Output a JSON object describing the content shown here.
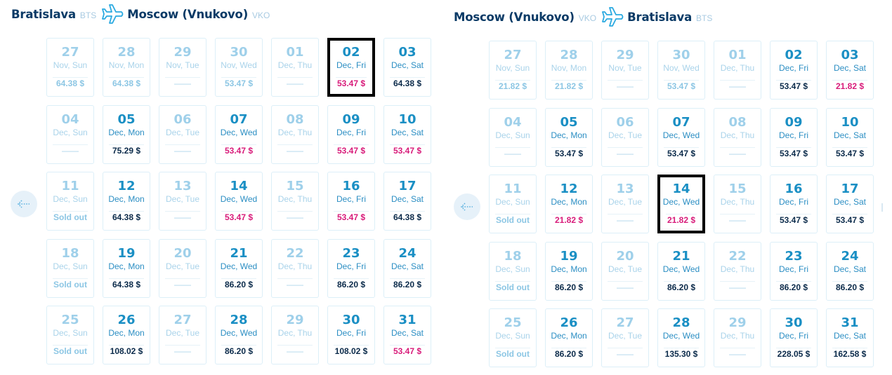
{
  "outbound": {
    "from_city": "Bratislava",
    "from_code": "BTS",
    "to_city": "Moscow (Vnukovo)",
    "to_code": "VKO",
    "selected_index": 5,
    "days": [
      {
        "day": "27",
        "sub": "Nov, Sun",
        "price": "64.38 $",
        "state": "inactive",
        "ptype": "past"
      },
      {
        "day": "28",
        "sub": "Nov, Mon",
        "price": "64.38 $",
        "state": "inactive",
        "ptype": "past"
      },
      {
        "day": "29",
        "sub": "Nov, Tue",
        "price": "——",
        "state": "inactive",
        "ptype": "none"
      },
      {
        "day": "30",
        "sub": "Nov, Wed",
        "price": "53.47 $",
        "state": "inactive",
        "ptype": "past"
      },
      {
        "day": "01",
        "sub": "Dec, Thu",
        "price": "——",
        "state": "inactive",
        "ptype": "none"
      },
      {
        "day": "02",
        "sub": "Dec, Fri",
        "price": "53.47 $",
        "state": "active",
        "ptype": "low"
      },
      {
        "day": "03",
        "sub": "Dec, Sat",
        "price": "64.38 $",
        "state": "active",
        "ptype": "normal"
      },
      {
        "day": "04",
        "sub": "Dec, Sun",
        "price": "——",
        "state": "inactive",
        "ptype": "none"
      },
      {
        "day": "05",
        "sub": "Dec, Mon",
        "price": "75.29 $",
        "state": "active",
        "ptype": "normal"
      },
      {
        "day": "06",
        "sub": "Dec, Tue",
        "price": "——",
        "state": "inactive",
        "ptype": "none"
      },
      {
        "day": "07",
        "sub": "Dec, Wed",
        "price": "53.47 $",
        "state": "active",
        "ptype": "low"
      },
      {
        "day": "08",
        "sub": "Dec, Thu",
        "price": "——",
        "state": "inactive",
        "ptype": "none"
      },
      {
        "day": "09",
        "sub": "Dec, Fri",
        "price": "53.47 $",
        "state": "active",
        "ptype": "low"
      },
      {
        "day": "10",
        "sub": "Dec, Sat",
        "price": "53.47 $",
        "state": "active",
        "ptype": "low"
      },
      {
        "day": "11",
        "sub": "Dec, Sun",
        "price": "Sold out",
        "state": "inactive",
        "ptype": "soldout"
      },
      {
        "day": "12",
        "sub": "Dec, Mon",
        "price": "64.38 $",
        "state": "active",
        "ptype": "normal"
      },
      {
        "day": "13",
        "sub": "Dec, Tue",
        "price": "——",
        "state": "inactive",
        "ptype": "none"
      },
      {
        "day": "14",
        "sub": "Dec, Wed",
        "price": "53.47 $",
        "state": "active",
        "ptype": "low"
      },
      {
        "day": "15",
        "sub": "Dec, Thu",
        "price": "——",
        "state": "inactive",
        "ptype": "none"
      },
      {
        "day": "16",
        "sub": "Dec, Fri",
        "price": "53.47 $",
        "state": "active",
        "ptype": "low"
      },
      {
        "day": "17",
        "sub": "Dec, Sat",
        "price": "64.38 $",
        "state": "active",
        "ptype": "normal"
      },
      {
        "day": "18",
        "sub": "Dec, Sun",
        "price": "Sold out",
        "state": "inactive",
        "ptype": "soldout"
      },
      {
        "day": "19",
        "sub": "Dec, Mon",
        "price": "64.38 $",
        "state": "active",
        "ptype": "normal"
      },
      {
        "day": "20",
        "sub": "Dec, Tue",
        "price": "——",
        "state": "inactive",
        "ptype": "none"
      },
      {
        "day": "21",
        "sub": "Dec, Wed",
        "price": "86.20 $",
        "state": "active",
        "ptype": "normal"
      },
      {
        "day": "22",
        "sub": "Dec, Thu",
        "price": "——",
        "state": "inactive",
        "ptype": "none"
      },
      {
        "day": "23",
        "sub": "Dec, Fri",
        "price": "86.20 $",
        "state": "active",
        "ptype": "normal"
      },
      {
        "day": "24",
        "sub": "Dec, Sat",
        "price": "86.20 $",
        "state": "active",
        "ptype": "normal"
      },
      {
        "day": "25",
        "sub": "Dec, Sun",
        "price": "Sold out",
        "state": "inactive",
        "ptype": "soldout"
      },
      {
        "day": "26",
        "sub": "Dec, Mon",
        "price": "108.02 $",
        "state": "active",
        "ptype": "normal"
      },
      {
        "day": "27",
        "sub": "Dec, Tue",
        "price": "——",
        "state": "inactive",
        "ptype": "none"
      },
      {
        "day": "28",
        "sub": "Dec, Wed",
        "price": "86.20 $",
        "state": "active",
        "ptype": "normal"
      },
      {
        "day": "29",
        "sub": "Dec, Thu",
        "price": "——",
        "state": "inactive",
        "ptype": "none"
      },
      {
        "day": "30",
        "sub": "Dec, Fri",
        "price": "108.02 $",
        "state": "active",
        "ptype": "normal"
      },
      {
        "day": "31",
        "sub": "Dec, Sat",
        "price": "53.47 $",
        "state": "active",
        "ptype": "low"
      }
    ]
  },
  "return": {
    "from_city": "Moscow (Vnukovo)",
    "from_code": "VKO",
    "to_city": "Bratislava",
    "to_code": "BTS",
    "selected_index": 17,
    "days": [
      {
        "day": "27",
        "sub": "Nov, Sun",
        "price": "21.82 $",
        "state": "inactive",
        "ptype": "past"
      },
      {
        "day": "28",
        "sub": "Nov, Mon",
        "price": "21.82 $",
        "state": "inactive",
        "ptype": "past"
      },
      {
        "day": "29",
        "sub": "Nov, Tue",
        "price": "——",
        "state": "inactive",
        "ptype": "none"
      },
      {
        "day": "30",
        "sub": "Nov, Wed",
        "price": "53.47 $",
        "state": "inactive",
        "ptype": "past"
      },
      {
        "day": "01",
        "sub": "Dec, Thu",
        "price": "——",
        "state": "inactive",
        "ptype": "none"
      },
      {
        "day": "02",
        "sub": "Dec, Fri",
        "price": "53.47 $",
        "state": "active",
        "ptype": "normal"
      },
      {
        "day": "03",
        "sub": "Dec, Sat",
        "price": "21.82 $",
        "state": "active",
        "ptype": "low"
      },
      {
        "day": "04",
        "sub": "Dec, Sun",
        "price": "——",
        "state": "inactive",
        "ptype": "none"
      },
      {
        "day": "05",
        "sub": "Dec, Mon",
        "price": "53.47 $",
        "state": "active",
        "ptype": "normal"
      },
      {
        "day": "06",
        "sub": "Dec, Tue",
        "price": "——",
        "state": "inactive",
        "ptype": "none"
      },
      {
        "day": "07",
        "sub": "Dec, Wed",
        "price": "53.47 $",
        "state": "active",
        "ptype": "normal"
      },
      {
        "day": "08",
        "sub": "Dec, Thu",
        "price": "——",
        "state": "inactive",
        "ptype": "none"
      },
      {
        "day": "09",
        "sub": "Dec, Fri",
        "price": "53.47 $",
        "state": "active",
        "ptype": "normal"
      },
      {
        "day": "10",
        "sub": "Dec, Sat",
        "price": "53.47 $",
        "state": "active",
        "ptype": "normal"
      },
      {
        "day": "11",
        "sub": "Dec, Sun",
        "price": "Sold out",
        "state": "inactive",
        "ptype": "soldout"
      },
      {
        "day": "12",
        "sub": "Dec, Mon",
        "price": "21.82 $",
        "state": "active",
        "ptype": "low"
      },
      {
        "day": "13",
        "sub": "Dec, Tue",
        "price": "——",
        "state": "inactive",
        "ptype": "none"
      },
      {
        "day": "14",
        "sub": "Dec, Wed",
        "price": "21.82 $",
        "state": "active",
        "ptype": "low"
      },
      {
        "day": "15",
        "sub": "Dec, Thu",
        "price": "——",
        "state": "inactive",
        "ptype": "none"
      },
      {
        "day": "16",
        "sub": "Dec, Fri",
        "price": "53.47 $",
        "state": "active",
        "ptype": "normal"
      },
      {
        "day": "17",
        "sub": "Dec, Sat",
        "price": "53.47 $",
        "state": "active",
        "ptype": "normal"
      },
      {
        "day": "18",
        "sub": "Dec, Sun",
        "price": "Sold out",
        "state": "inactive",
        "ptype": "soldout"
      },
      {
        "day": "19",
        "sub": "Dec, Mon",
        "price": "86.20 $",
        "state": "active",
        "ptype": "normal"
      },
      {
        "day": "20",
        "sub": "Dec, Tue",
        "price": "——",
        "state": "inactive",
        "ptype": "none"
      },
      {
        "day": "21",
        "sub": "Dec, Wed",
        "price": "86.20 $",
        "state": "active",
        "ptype": "normal"
      },
      {
        "day": "22",
        "sub": "Dec, Thu",
        "price": "——",
        "state": "inactive",
        "ptype": "none"
      },
      {
        "day": "23",
        "sub": "Dec, Fri",
        "price": "86.20 $",
        "state": "active",
        "ptype": "normal"
      },
      {
        "day": "24",
        "sub": "Dec, Sat",
        "price": "86.20 $",
        "state": "active",
        "ptype": "normal"
      },
      {
        "day": "25",
        "sub": "Dec, Sun",
        "price": "Sold out",
        "state": "inactive",
        "ptype": "soldout"
      },
      {
        "day": "26",
        "sub": "Dec, Mon",
        "price": "86.20 $",
        "state": "active",
        "ptype": "normal"
      },
      {
        "day": "27",
        "sub": "Dec, Tue",
        "price": "——",
        "state": "inactive",
        "ptype": "none"
      },
      {
        "day": "28",
        "sub": "Dec, Wed",
        "price": "135.30 $",
        "state": "active",
        "ptype": "normal"
      },
      {
        "day": "29",
        "sub": "Dec, Thu",
        "price": "——",
        "state": "inactive",
        "ptype": "none"
      },
      {
        "day": "30",
        "sub": "Dec, Fri",
        "price": "228.05 $",
        "state": "active",
        "ptype": "normal"
      },
      {
        "day": "31",
        "sub": "Dec, Sat",
        "price": "162.58 $",
        "state": "active",
        "ptype": "normal"
      }
    ]
  },
  "icons": {
    "plane": "plane-icon",
    "prev": "arrow-left-dotted-icon"
  },
  "colors": {
    "title": "#0a3a66",
    "code": "#a9cbe2",
    "active_day": "#1a8fc4",
    "inactive_day": "#9fd0ea",
    "low_price": "#d81b7a",
    "normal_price": "#0a2a4a",
    "cell_border": "#dceff8",
    "nav_bg": "#e6f1f9",
    "plane": "#29a9e0"
  }
}
